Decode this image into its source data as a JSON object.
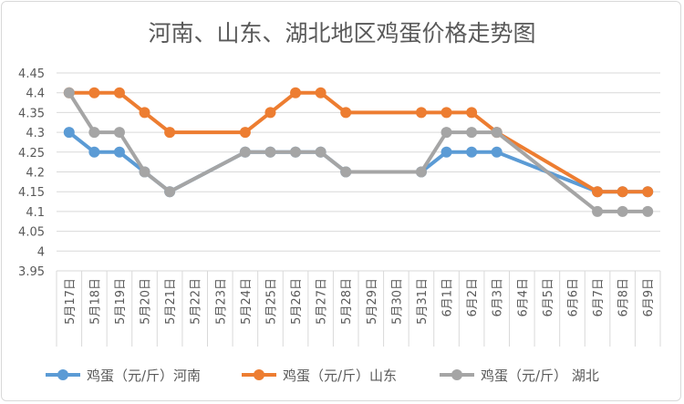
{
  "chart_data": {
    "type": "line",
    "title": "河南、山东、湖北地区鸡蛋价格走势图",
    "categories": [
      "5月17日",
      "5月18日",
      "5月19日",
      "5月20日",
      "5月21日",
      "5月22日",
      "5月23日",
      "5月24日",
      "5月25日",
      "5月26日",
      "5月27日",
      "5月28日",
      "5月29日",
      "5月30日",
      "5月31日",
      "6月1日",
      "6月2日",
      "6月3日",
      "6月4日",
      "6月5日",
      "6月6日",
      "6月7日",
      "6月8日",
      "6月9日"
    ],
    "series": [
      {
        "name": "鸡蛋（元/斤）河南",
        "color": "#5b9bd5",
        "values": [
          4.3,
          4.25,
          4.25,
          4.2,
          4.15,
          null,
          null,
          4.25,
          4.25,
          4.25,
          4.25,
          4.2,
          null,
          null,
          4.2,
          4.25,
          4.25,
          4.25,
          null,
          null,
          null,
          4.15,
          4.15,
          4.15
        ]
      },
      {
        "name": "鸡蛋（元/斤）山东",
        "color": "#ed7d31",
        "values": [
          4.4,
          4.4,
          4.4,
          4.35,
          4.3,
          null,
          null,
          4.3,
          4.35,
          4.4,
          4.4,
          4.35,
          null,
          null,
          4.35,
          4.35,
          4.35,
          4.3,
          null,
          null,
          null,
          4.15,
          4.15,
          4.15
        ]
      },
      {
        "name": "鸡蛋（元/斤） 湖北",
        "color": "#a5a5a5",
        "values": [
          4.4,
          4.3,
          4.3,
          4.2,
          4.15,
          null,
          null,
          4.25,
          4.25,
          4.25,
          4.25,
          4.2,
          null,
          null,
          4.2,
          4.3,
          4.3,
          4.3,
          null,
          null,
          null,
          4.1,
          4.1,
          4.1
        ]
      }
    ],
    "yticks": [
      "3.95",
      "4",
      "4.05",
      "4.1",
      "4.15",
      "4.2",
      "4.25",
      "4.3",
      "4.35",
      "4.4",
      "4.45"
    ],
    "ylim": [
      3.95,
      4.45
    ],
    "grid": true,
    "legend": "bottom",
    "connect_gaps": true
  }
}
